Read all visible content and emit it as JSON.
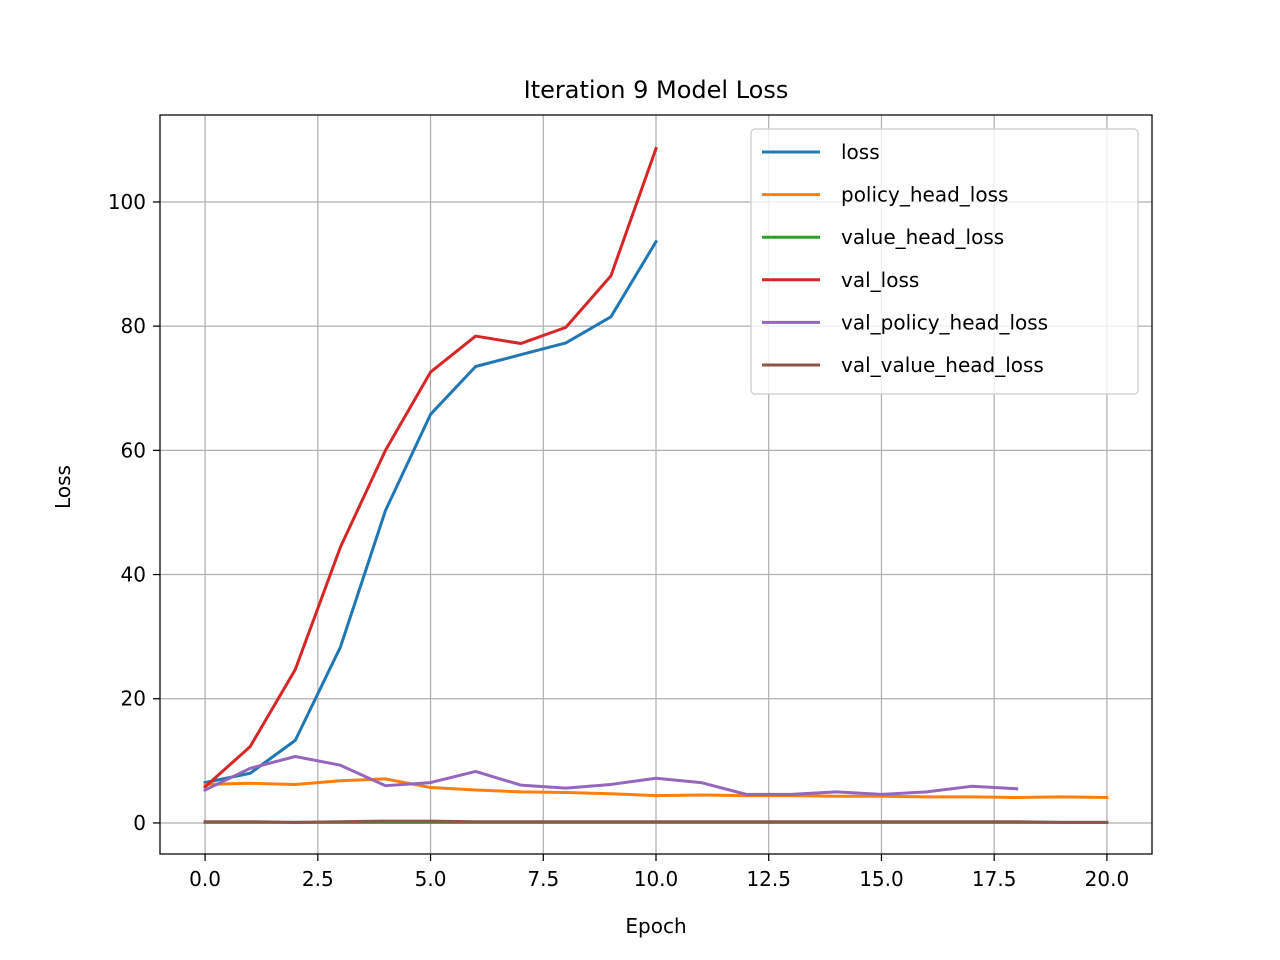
{
  "chart_data": {
    "type": "line",
    "title": "Iteration 9 Model Loss",
    "xlabel": "Epoch",
    "ylabel": "Loss",
    "xlim": [
      -1.0,
      21.0
    ],
    "ylim": [
      -5.0,
      114.0
    ],
    "xticks": [
      0.0,
      2.5,
      5.0,
      7.5,
      10.0,
      12.5,
      15.0,
      17.5,
      20.0
    ],
    "xtick_labels": [
      "0.0",
      "2.5",
      "5.0",
      "7.5",
      "10.0",
      "12.5",
      "15.0",
      "17.5",
      "20.0"
    ],
    "yticks": [
      0,
      20,
      40,
      60,
      80,
      100
    ],
    "ytick_labels": [
      "0",
      "20",
      "40",
      "60",
      "80",
      "100"
    ],
    "grid": true,
    "legend_position": "top-right",
    "series": [
      {
        "name": "loss",
        "color": "#1f77b4",
        "x": [
          0,
          1,
          2,
          3,
          4,
          5,
          6,
          7,
          8,
          9,
          10
        ],
        "y": [
          6.5,
          8.0,
          13.3,
          28.3,
          50.3,
          65.8,
          73.5,
          75.4,
          77.3,
          81.5,
          93.6
        ]
      },
      {
        "name": "policy_head_loss",
        "color": "#ff7f0e",
        "x": [
          0,
          1,
          2,
          3,
          4,
          5,
          6,
          7,
          8,
          9,
          10,
          11,
          12,
          13,
          14,
          15,
          16,
          17,
          18,
          19,
          20
        ],
        "y": [
          6.2,
          6.4,
          6.2,
          6.8,
          7.1,
          5.7,
          5.3,
          5.0,
          4.9,
          4.7,
          4.4,
          4.5,
          4.4,
          4.4,
          4.3,
          4.3,
          4.2,
          4.2,
          4.1,
          4.2,
          4.1
        ]
      },
      {
        "name": "value_head_loss",
        "color": "#2ca02c",
        "x": [
          0,
          1,
          2,
          3,
          4,
          5,
          6,
          7,
          8,
          9,
          10,
          11,
          12,
          13,
          14,
          15,
          16,
          17,
          18,
          19,
          20
        ],
        "y": [
          0.1,
          0.1,
          0.1,
          0.1,
          0.1,
          0.1,
          0.1,
          0.1,
          0.1,
          0.1,
          0.1,
          0.1,
          0.1,
          0.1,
          0.1,
          0.1,
          0.1,
          0.1,
          0.1,
          0.1,
          0.1
        ]
      },
      {
        "name": "val_loss",
        "color": "#d62728",
        "x": [
          0,
          1,
          2,
          3,
          4,
          5,
          6,
          7,
          8,
          9,
          10
        ],
        "y": [
          5.8,
          12.3,
          24.7,
          44.4,
          60.0,
          72.6,
          78.4,
          77.2,
          79.8,
          88.1,
          108.6
        ]
      },
      {
        "name": "val_policy_head_loss",
        "color": "#9467bd",
        "x": [
          0,
          1,
          2,
          3,
          4,
          5,
          6,
          7,
          8,
          9,
          10,
          11,
          12,
          13,
          14,
          15,
          16,
          17,
          18
        ],
        "y": [
          5.3,
          8.8,
          10.7,
          9.3,
          6.0,
          6.5,
          8.3,
          6.1,
          5.6,
          6.2,
          7.2,
          6.5,
          4.6,
          4.6,
          5.0,
          4.6,
          5.0,
          5.9,
          5.5
        ]
      },
      {
        "name": "val_value_head_loss",
        "color": "#8c564b",
        "x": [
          0,
          1,
          2,
          3,
          4,
          5,
          6,
          7,
          8,
          9,
          10,
          11,
          12,
          13,
          14,
          15,
          16,
          17,
          18,
          19,
          20
        ],
        "y": [
          0.2,
          0.2,
          0.1,
          0.2,
          0.3,
          0.3,
          0.2,
          0.2,
          0.2,
          0.2,
          0.2,
          0.2,
          0.2,
          0.2,
          0.2,
          0.2,
          0.2,
          0.2,
          0.2,
          0.1,
          0.1
        ]
      }
    ]
  }
}
